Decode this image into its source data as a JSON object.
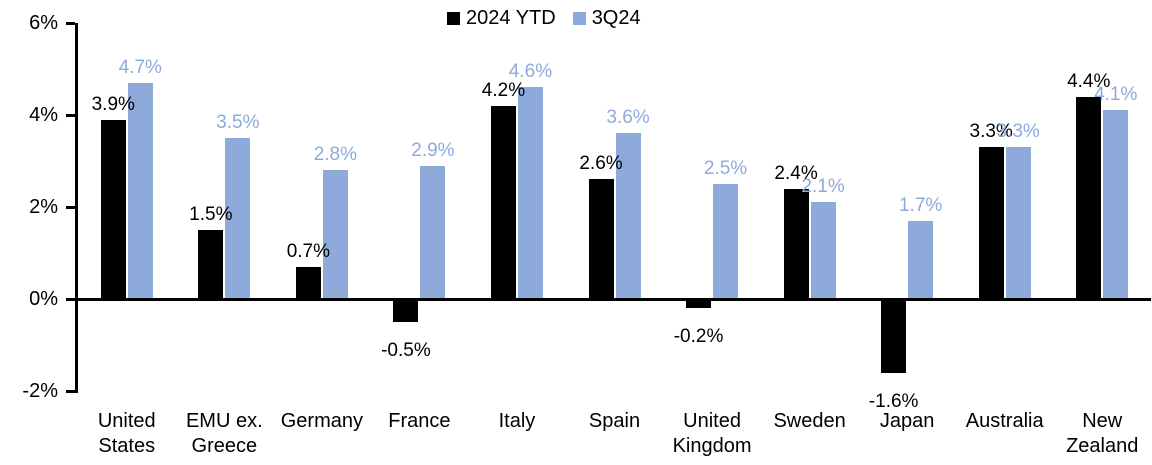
{
  "chart_data": {
    "type": "bar",
    "categories": [
      "United States",
      "EMU ex. Greece",
      "Germany",
      "France",
      "Italy",
      "Spain",
      "United Kingdom",
      "Sweden",
      "Japan",
      "Australia",
      "New Zealand"
    ],
    "category_lines": [
      [
        "United",
        "States"
      ],
      [
        "EMU ex.",
        "Greece"
      ],
      [
        "Germany"
      ],
      [
        "France"
      ],
      [
        "Italy"
      ],
      [
        "Spain"
      ],
      [
        "United",
        "Kingdom"
      ],
      [
        "Sweden"
      ],
      [
        "Japan"
      ],
      [
        "Australia"
      ],
      [
        "New",
        "Zealand"
      ]
    ],
    "series": [
      {
        "name": "2024 YTD",
        "color": "#000000",
        "label_color": "#000000",
        "values": [
          3.9,
          1.5,
          0.7,
          -0.5,
          4.2,
          2.6,
          -0.2,
          2.4,
          -1.6,
          3.3,
          4.4
        ],
        "labels": [
          "3.9%",
          "1.5%",
          "0.7%",
          "-0.5%",
          "4.2%",
          "2.6%",
          "-0.2%",
          "2.4%",
          "-1.6%",
          "3.3%",
          "4.4%"
        ]
      },
      {
        "name": "3Q24",
        "color": "#8EAADB",
        "label_color": "#8EAADB",
        "values": [
          4.7,
          3.5,
          2.8,
          2.9,
          4.6,
          3.6,
          2.5,
          2.1,
          1.7,
          3.3,
          4.1
        ],
        "labels": [
          "4.7%",
          "3.5%",
          "2.8%",
          "2.9%",
          "4.6%",
          "3.6%",
          "2.5%",
          "2.1%",
          "1.7%",
          "3.3%",
          "4.1%"
        ]
      }
    ],
    "ylim": [
      -2,
      6
    ],
    "yticks": [
      {
        "value": 6,
        "label": "6%"
      },
      {
        "value": 4,
        "label": "4%"
      },
      {
        "value": 2,
        "label": "2%"
      },
      {
        "value": 0,
        "label": "0%"
      },
      {
        "value": -2,
        "label": "-2%"
      }
    ],
    "legend_position": "top-center",
    "grid": false,
    "axis_color": "#000000",
    "background": "#FFFFFF"
  }
}
